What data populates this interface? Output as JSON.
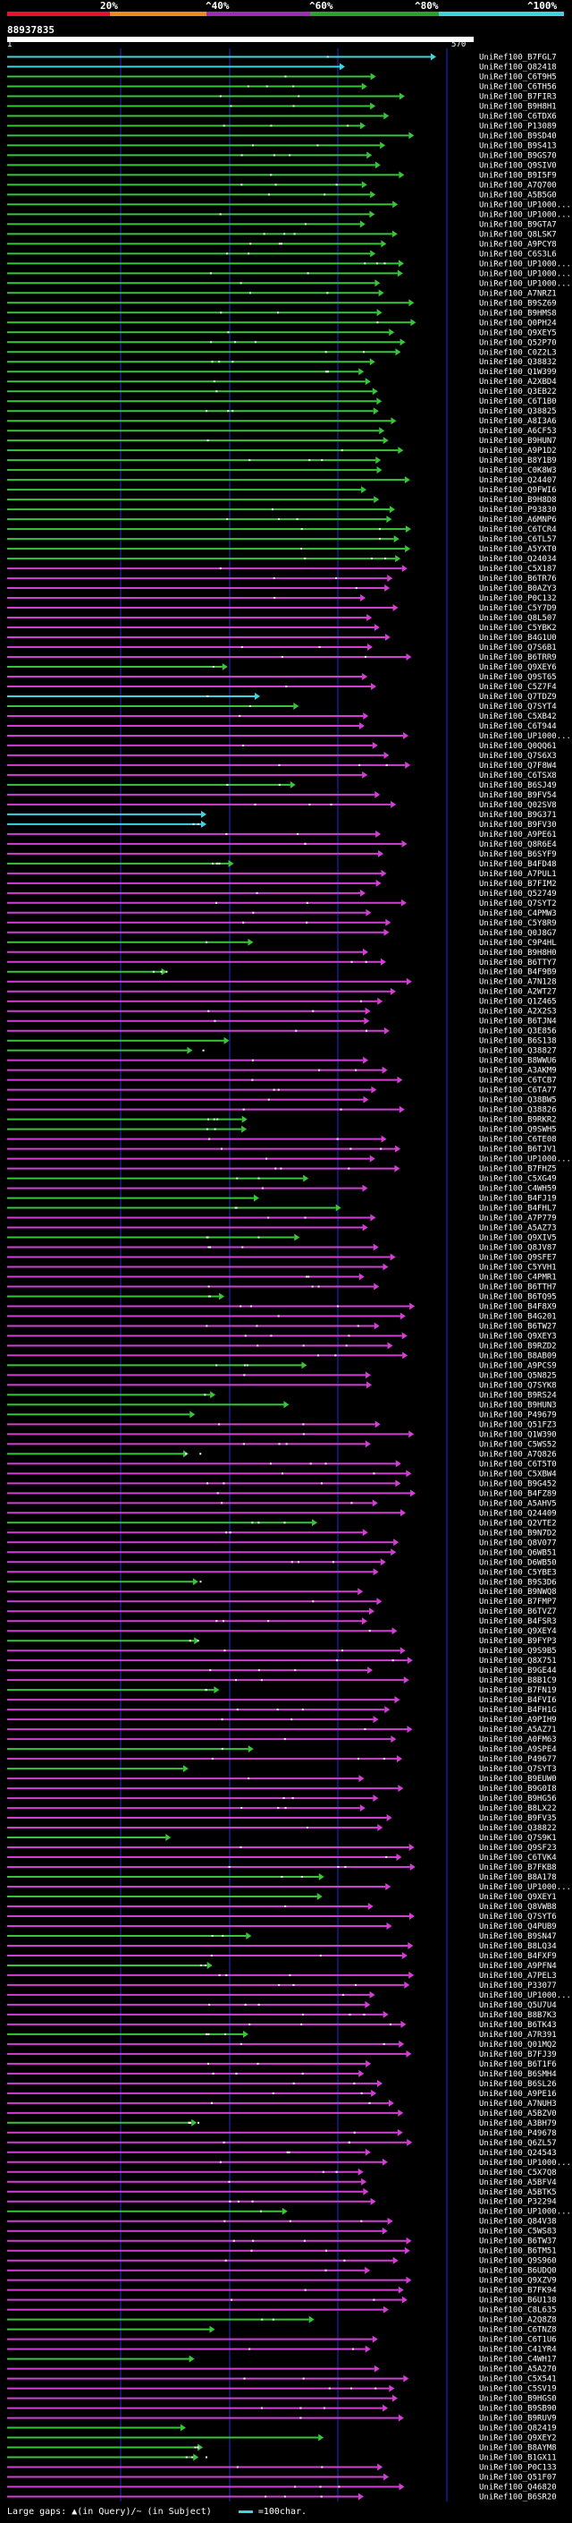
{
  "scale": {
    "labels": [
      "20%",
      "^40%",
      "^60%",
      "^80%",
      "^100%"
    ],
    "segments": [
      {
        "color": "#e8132a"
      },
      {
        "color": "#ef8a1f"
      },
      {
        "color": "#9b2fb0"
      },
      {
        "color": "#2fa12a"
      },
      {
        "color": "#3fd3e0"
      }
    ]
  },
  "query": {
    "id": "88937835",
    "range_start": "1",
    "range_end": "570"
  },
  "colors": {
    "background": "#000000",
    "grid": "#1f2bd6",
    "cyan": "#3fd3e0",
    "green": "#39c43a",
    "magenta": "#d23fd3",
    "label": "#ffffff"
  },
  "chart_data": {
    "type": "alignment-overview",
    "query_length": 570,
    "labels": [
      "UniRef100_B7FGL7",
      "UniRef100_Q82418",
      "UniRef100_C6T9H5",
      "UniRef100_C6TH56",
      "UniRef100_B7FIR3",
      "UniRef100_B9H8H1",
      "UniRef100_C6TDX6",
      "UniRef100_P13089",
      "UniRef100_B9SD40",
      "UniRef100_B9S413",
      "UniRef100_B9GS70",
      "UniRef100_Q9SIV0",
      "UniRef100_B9I5F9",
      "UniRef100_A7Q700",
      "UniRef100_A5B5G0",
      "UniRef100_UP1000...",
      "UniRef100_UP1000...",
      "UniRef100_B9GTA7",
      "UniRef100_Q8LSK7",
      "UniRef100_A9PCY8",
      "UniRef100_C6S3L6",
      "UniRef100_UP1000...",
      "UniRef100_UP1000...",
      "UniRef100_UP1000...",
      "UniRef100_A7NRZ1",
      "UniRef100_B9SZ69",
      "UniRef100_B9HMS8",
      "UniRef100_Q0PH24",
      "UniRef100_Q9XEY5",
      "UniRef100_Q52P70",
      "UniRef100_C0Z2L3",
      "UniRef100_Q38832",
      "UniRef100_Q1W399",
      "UniRef100_A2XBD4",
      "UniRef100_Q3EB22",
      "UniRef100_C6T1B0",
      "UniRef100_Q38825",
      "UniRef100_A8I3A6",
      "UniRef100_A6CF53",
      "UniRef100_B9HUN7",
      "UniRef100_A9P1D2",
      "UniRef100_B8Y1B9",
      "UniRef100_C0K8W3",
      "UniRef100_Q24407",
      "UniRef100_Q9FWI6",
      "UniRef100_B9H8D8",
      "UniRef100_P93830",
      "UniRef100_A6MNP6",
      "UniRef100_C6TCR4",
      "UniRef100_C6TL57",
      "UniRef100_A5YXT0",
      "UniRef100_Q24034",
      "UniRef100_C5X187",
      "UniRef100_B6TR76",
      "UniRef100_B0AZY3",
      "UniRef100_P0C132",
      "UniRef100_C5Y7D9",
      "UniRef100_Q8L507",
      "UniRef100_C5YBK2",
      "UniRef100_B4G1U0",
      "UniRef100_Q7S6B1",
      "UniRef100_B6TRR9",
      "UniRef100_Q9XEY6",
      "UniRef100_Q9ST65",
      "UniRef100_C5Z7F4",
      "UniRef100_Q7TDZ9",
      "UniRef100_Q7SYT4",
      "UniRef100_C5XB42",
      "UniRef100_C6T944",
      "UniRef100_UP1000...",
      "UniRef100_Q0QQ61",
      "UniRef100_Q7S6X3",
      "UniRef100_Q7F8W4",
      "UniRef100_C6TSX8",
      "UniRef100_B6SJ49",
      "UniRef100_B9FV54",
      "UniRef100_Q02SV8",
      "UniRef100_B9G371",
      "UniRef100_B9FV30",
      "UniRef100_A9PE61",
      "UniRef100_Q8R6E4",
      "UniRef100_B6SYF9",
      "UniRef100_B4FD48",
      "UniRef100_A7PUL1",
      "UniRef100_B7FIM2",
      "UniRef100_Q52749",
      "UniRef100_Q7SYT2",
      "UniRef100_C4PMW3",
      "UniRef100_C5Y8R9",
      "UniRef100_Q0J8G7",
      "UniRef100_C9P4HL",
      "UniRef100_B9H8H0",
      "UniRef100_B6TTY7",
      "UniRef100_B4F9B9",
      "UniRef100_A7N128",
      "UniRef100_A2WT27",
      "UniRef100_Q1Z465",
      "UniRef100_A2X2S3",
      "UniRef100_B6TJN4",
      "UniRef100_Q3E856",
      "UniRef100_B6S138",
      "UniRef100_Q38827",
      "UniRef100_B8WWU6",
      "UniRef100_A3AKM9",
      "UniRef100_C6TCB7",
      "UniRef100_C6TA77",
      "UniRef100_Q38BW5",
      "UniRef100_Q38826",
      "UniRef100_B9RKR2",
      "UniRef100_Q9SWH5",
      "UniRef100_C6TE08",
      "UniRef100_B6TJV1",
      "UniRef100_UP1000...",
      "UniRef100_B7FHZ5",
      "UniRef100_C5XG49",
      "UniRef100_C4WH59",
      "UniRef100_B4FJ19",
      "UniRef100_B4FHL7",
      "UniRef100_A7P779",
      "UniRef100_A5AZ73",
      "UniRef100_Q9XIV5",
      "UniRef100_Q8JV87",
      "UniRef100_Q9SFE7",
      "UniRef100_C5YVH1",
      "UniRef100_C4PMR1",
      "UniRef100_B6TTH7",
      "UniRef100_B6TQ95",
      "UniRef100_B4F8X9",
      "UniRef100_B4G201",
      "UniRef100_B6TW27",
      "UniRef100_Q9XEY3",
      "UniRef100_B9RZD2",
      "UniRef100_B8AB09",
      "UniRef100_A9PCS9",
      "UniRef100_Q5N825",
      "UniRef100_Q7SYK8",
      "UniRef100_B9RS24",
      "UniRef100_B9HUN3",
      "UniRef100_P49679",
      "UniRef100_Q51FZ3",
      "UniRef100_Q1W390",
      "UniRef100_C5WS52",
      "UniRef100_A7Q826",
      "UniRef100_C6T5T0",
      "UniRef100_C5XBW4",
      "UniRef100_B9G452",
      "UniRef100_B4FZ89",
      "UniRef100_A5AHV5",
      "UniRef100_Q24409",
      "UniRef100_Q2VTE2",
      "UniRef100_B9N7D2",
      "UniRef100_Q8V077",
      "UniRef100_Q6WB51",
      "UniRef100_D6WB50",
      "UniRef100_C5YBE3",
      "UniRef100_B9S3D6",
      "UniRef100_B9NWQ8",
      "UniRef100_B7FMP7",
      "UniRef100_B6TVZ7",
      "UniRef100_B4FSR3",
      "UniRef100_Q9XEY4",
      "UniRef100_B9FYP3",
      "UniRef100_Q9S9B5",
      "UniRef100_Q8X751",
      "UniRef100_B9GE44",
      "UniRef100_B8B1C9",
      "UniRef100_B7FN19",
      "UniRef100_B4FVI6",
      "UniRef100_B4FH1G",
      "UniRef100_A9PIH9",
      "UniRef100_A5AZ71",
      "UniRef100_A0FM63",
      "UniRef100_A9SPE4",
      "UniRef100_P49677",
      "UniRef100_Q7SYT3",
      "UniRef100_B9EUW0",
      "UniRef100_B9G0I8",
      "UniRef100_B9HG56",
      "UniRef100_B8LX22",
      "UniRef100_B9FV35",
      "UniRef100_Q38822",
      "UniRef100_Q7S9K1",
      "UniRef100_Q9SF23",
      "UniRef100_C6TVK4",
      "UniRef100_B7FKB8",
      "UniRef100_B8A178",
      "UniRef100_UP1000...",
      "UniRef100_Q9XEY1",
      "UniRef100_Q8VWB8",
      "UniRef100_Q7SYT6",
      "UniRef100_Q4PUB9",
      "UniRef100_B9SN47",
      "UniRef100_B8LQ34",
      "UniRef100_B4FXF9",
      "UniRef100_A9PFN4",
      "UniRef100_A7PEL3",
      "UniRef100_P33077",
      "UniRef100_UP1000...",
      "UniRef100_Q5U7U4",
      "UniRef100_B8B7K3",
      "UniRef100_B6TK43",
      "UniRef100_A7R391",
      "UniRef100_Q01MQ2",
      "UniRef100_B7FJ39",
      "UniRef100_B6T1F6",
      "UniRef100_B6SMH4",
      "UniRef100_B6SL26",
      "UniRef100_A9PE16",
      "UniRef100_A7NUH3",
      "UniRef100_A5BZV0",
      "UniRef100_A3BH79",
      "UniRef100_P49678",
      "UniRef100_Q6ZL57",
      "UniRef100_Q24543",
      "UniRef100_UP1000...",
      "UniRef100_C5X7Q8",
      "UniRef100_A5BFV4",
      "UniRef100_A5BTK5",
      "UniRef100_P32294",
      "UniRef100_UP1000...",
      "UniRef100_Q84V38",
      "UniRef100_C5WS83",
      "UniRef100_B6TW37",
      "UniRef100_B6TM51",
      "UniRef100_Q9S960",
      "UniRef100_B6UDQ0",
      "UniRef100_Q9XZV9",
      "UniRef100_B7FK94",
      "UniRef100_B6U138",
      "UniRef100_C8L635",
      "UniRef100_A2Q8Z8",
      "UniRef100_C6TNZ8",
      "UniRef100_C6T1U6",
      "UniRef100_C41YR4",
      "UniRef100_C4WH17",
      "UniRef100_A5A270",
      "UniRef100_C5X541",
      "UniRef100_C5SV19",
      "UniRef100_B9HGS0",
      "UniRef100_B9SB90",
      "UniRef100_B9RUV9",
      "UniRef100_Q82419",
      "UniRef100_Q9XEY2",
      "UniRef100_B8AYM8",
      "UniRef100_B1GX11",
      "UniRef100_P0C133",
      "UniRef100_Q51F07",
      "UniRef100_Q46820",
      "UniRef100_B6SR20"
    ]
  },
  "legend": {
    "text": "Large gaps: ▲(in Query)/~ (in Subject)",
    "swatch_text": "=100char."
  }
}
